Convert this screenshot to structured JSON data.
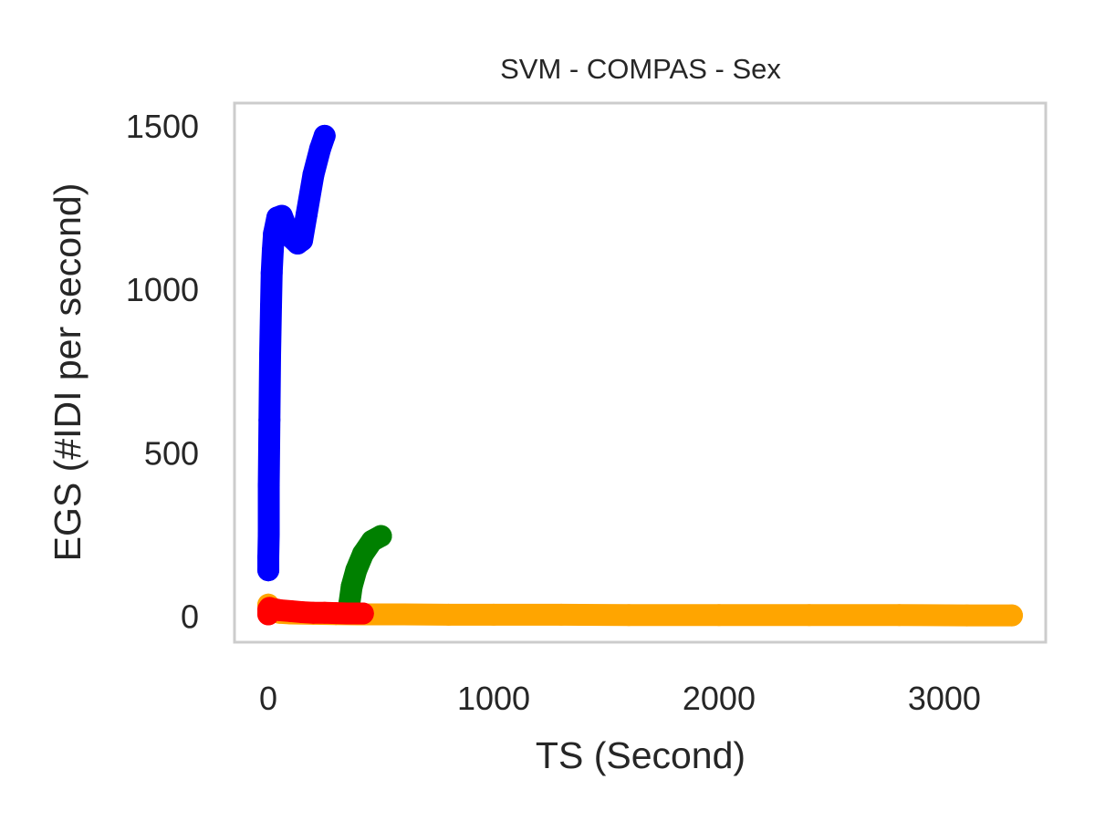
{
  "chart_data": {
    "type": "scatter",
    "title": "SVM - COMPAS - Sex",
    "xlabel": "TS (Second)",
    "ylabel": "EGS (#IDI  per second)",
    "xlim": [
      -150,
      3450
    ],
    "ylim": [
      -80,
      1570
    ],
    "xticks": [
      0,
      1000,
      2000,
      3000
    ],
    "yticks": [
      0,
      500,
      1000,
      1500
    ],
    "grid": false,
    "series": [
      {
        "color": "#ffa500",
        "points": [
          [
            0,
            35
          ],
          [
            20,
            15
          ],
          [
            50,
            10
          ],
          [
            100,
            8
          ],
          [
            200,
            7
          ],
          [
            300,
            6
          ],
          [
            400,
            5
          ],
          [
            600,
            5
          ],
          [
            800,
            4
          ],
          [
            1000,
            4
          ],
          [
            1300,
            4
          ],
          [
            1600,
            3
          ],
          [
            2000,
            3
          ],
          [
            2400,
            3
          ],
          [
            2800,
            3
          ],
          [
            3100,
            2
          ],
          [
            3300,
            2
          ]
        ]
      },
      {
        "color": "#0000ff",
        "points": [
          [
            0,
            140
          ],
          [
            0,
            180
          ],
          [
            2,
            250
          ],
          [
            2,
            400
          ],
          [
            5,
            600
          ],
          [
            8,
            800
          ],
          [
            12,
            950
          ],
          [
            15,
            1050
          ],
          [
            20,
            1120
          ],
          [
            25,
            1170
          ],
          [
            40,
            1220
          ],
          [
            60,
            1225
          ],
          [
            80,
            1190
          ],
          [
            100,
            1160
          ],
          [
            130,
            1140
          ],
          [
            150,
            1150
          ],
          [
            170,
            1230
          ],
          [
            200,
            1350
          ],
          [
            230,
            1430
          ],
          [
            250,
            1470
          ]
        ]
      },
      {
        "color": "#008000",
        "points": [
          [
            350,
            10
          ],
          [
            360,
            40
          ],
          [
            370,
            90
          ],
          [
            390,
            140
          ],
          [
            420,
            190
          ],
          [
            460,
            230
          ],
          [
            500,
            245
          ]
        ]
      },
      {
        "color": "#ff0000",
        "points": [
          [
            0,
            5
          ],
          [
            0,
            20
          ],
          [
            5,
            25
          ],
          [
            20,
            22
          ],
          [
            50,
            18
          ],
          [
            100,
            15
          ],
          [
            150,
            12
          ],
          [
            200,
            10
          ],
          [
            250,
            10
          ],
          [
            300,
            9
          ],
          [
            350,
            8
          ],
          [
            400,
            8
          ],
          [
            420,
            8
          ]
        ]
      }
    ]
  }
}
